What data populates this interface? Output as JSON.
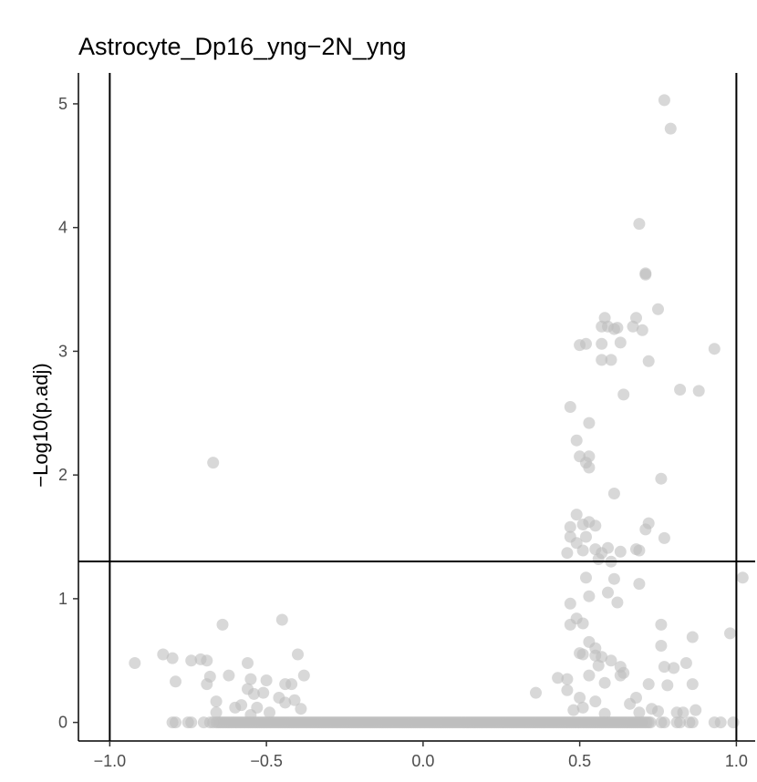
{
  "chart_data": {
    "type": "scatter",
    "title": "Astrocyte_Dp16_yng−2N_yng",
    "xlabel": "",
    "ylabel": "−Log10(p.adj)",
    "xlim": [
      -1.1,
      1.06
    ],
    "ylim": [
      -0.15,
      5.25
    ],
    "x_ticks": [
      -1.0,
      -0.5,
      0.0,
      0.5,
      1.0
    ],
    "x_tick_labels": [
      "−1.0",
      "−0.5",
      "0.0",
      "0.5",
      "1.0"
    ],
    "y_ticks": [
      0,
      1,
      2,
      3,
      4,
      5
    ],
    "y_tick_labels": [
      "0",
      "1",
      "2",
      "3",
      "4",
      "5"
    ],
    "grid": false,
    "point_color": "#bebebe",
    "reference_lines": {
      "vertical": [
        -1.0,
        1.0
      ],
      "horizontal": [
        1.301
      ]
    },
    "points": [
      [
        0.77,
        5.03
      ],
      [
        0.79,
        4.8
      ],
      [
        0.69,
        4.03
      ],
      [
        0.71,
        3.63
      ],
      [
        0.71,
        3.62
      ],
      [
        0.75,
        3.34
      ],
      [
        0.68,
        3.27
      ],
      [
        0.58,
        3.27
      ],
      [
        0.62,
        3.19
      ],
      [
        0.57,
        3.2
      ],
      [
        0.59,
        3.2
      ],
      [
        0.61,
        3.18
      ],
      [
        0.67,
        3.2
      ],
      [
        0.7,
        3.17
      ],
      [
        0.5,
        3.05
      ],
      [
        0.52,
        3.06
      ],
      [
        0.57,
        3.06
      ],
      [
        0.63,
        3.07
      ],
      [
        0.57,
        2.93
      ],
      [
        0.6,
        2.93
      ],
      [
        0.72,
        2.92
      ],
      [
        0.93,
        3.02
      ],
      [
        0.64,
        2.65
      ],
      [
        0.82,
        2.69
      ],
      [
        0.88,
        2.68
      ],
      [
        0.47,
        2.55
      ],
      [
        0.53,
        2.42
      ],
      [
        0.49,
        2.28
      ],
      [
        0.5,
        2.15
      ],
      [
        0.53,
        2.15
      ],
      [
        0.52,
        2.1
      ],
      [
        0.53,
        2.06
      ],
      [
        0.76,
        1.97
      ],
      [
        0.61,
        1.85
      ],
      [
        -0.67,
        2.1
      ],
      [
        0.49,
        1.68
      ],
      [
        0.51,
        1.6
      ],
      [
        0.53,
        1.62
      ],
      [
        0.47,
        1.58
      ],
      [
        0.55,
        1.59
      ],
      [
        0.72,
        1.61
      ],
      [
        0.71,
        1.56
      ],
      [
        0.47,
        1.5
      ],
      [
        0.52,
        1.5
      ],
      [
        0.77,
        1.49
      ],
      [
        0.49,
        1.45
      ],
      [
        0.46,
        1.37
      ],
      [
        0.51,
        1.39
      ],
      [
        0.55,
        1.4
      ],
      [
        0.57,
        1.37
      ],
      [
        0.59,
        1.41
      ],
      [
        0.63,
        1.38
      ],
      [
        0.68,
        1.4
      ],
      [
        0.69,
        1.39
      ],
      [
        0.56,
        1.32
      ],
      [
        0.6,
        1.3
      ],
      [
        0.52,
        1.17
      ],
      [
        0.61,
        1.16
      ],
      [
        0.69,
        1.12
      ],
      [
        1.02,
        1.17
      ],
      [
        0.59,
        1.05
      ],
      [
        0.53,
        1.02
      ],
      [
        0.62,
        0.97
      ],
      [
        0.47,
        0.96
      ],
      [
        0.49,
        0.84
      ],
      [
        0.51,
        0.8
      ],
      [
        0.47,
        0.79
      ],
      [
        0.76,
        0.79
      ],
      [
        0.86,
        0.69
      ],
      [
        0.98,
        0.72
      ],
      [
        -0.64,
        0.79
      ],
      [
        -0.45,
        0.83
      ],
      [
        0.53,
        0.65
      ],
      [
        0.55,
        0.6
      ],
      [
        0.76,
        0.62
      ],
      [
        0.5,
        0.56
      ],
      [
        0.51,
        0.55
      ],
      [
        0.55,
        0.54
      ],
      [
        0.57,
        0.53
      ],
      [
        0.6,
        0.5
      ],
      [
        -0.92,
        0.48
      ],
      [
        -0.83,
        0.55
      ],
      [
        -0.8,
        0.52
      ],
      [
        -0.74,
        0.5
      ],
      [
        -0.71,
        0.51
      ],
      [
        -0.69,
        0.5
      ],
      [
        -0.56,
        0.48
      ],
      [
        -0.4,
        0.55
      ],
      [
        0.56,
        0.46
      ],
      [
        0.63,
        0.45
      ],
      [
        0.77,
        0.45
      ],
      [
        0.8,
        0.44
      ],
      [
        0.84,
        0.48
      ],
      [
        0.36,
        0.24
      ],
      [
        0.43,
        0.36
      ],
      [
        0.46,
        0.35
      ],
      [
        0.53,
        0.38
      ],
      [
        0.63,
        0.38
      ],
      [
        0.64,
        0.4
      ],
      [
        -0.38,
        0.38
      ],
      [
        -0.79,
        0.33
      ],
      [
        -0.68,
        0.37
      ],
      [
        -0.69,
        0.31
      ],
      [
        -0.62,
        0.38
      ],
      [
        -0.55,
        0.35
      ],
      [
        -0.5,
        0.34
      ],
      [
        -0.44,
        0.31
      ],
      [
        -0.42,
        0.31
      ],
      [
        0.58,
        0.32
      ],
      [
        0.72,
        0.31
      ],
      [
        0.78,
        0.3
      ],
      [
        0.86,
        0.31
      ],
      [
        0.46,
        0.26
      ],
      [
        -0.56,
        0.27
      ],
      [
        -0.54,
        0.23
      ],
      [
        -0.51,
        0.24
      ],
      [
        -0.46,
        0.2
      ],
      [
        -0.41,
        0.18
      ],
      [
        -0.66,
        0.17
      ],
      [
        -0.44,
        0.16
      ],
      [
        0.5,
        0.2
      ],
      [
        0.55,
        0.17
      ],
      [
        0.66,
        0.15
      ],
      [
        0.68,
        0.2
      ],
      [
        0.73,
        0.11
      ],
      [
        -0.6,
        0.12
      ],
      [
        -0.58,
        0.14
      ],
      [
        -0.53,
        0.12
      ],
      [
        -0.49,
        0.08
      ],
      [
        -0.39,
        0.11
      ],
      [
        -0.66,
        0.08
      ],
      [
        -0.55,
        0.06
      ],
      [
        0.48,
        0.1
      ],
      [
        0.51,
        0.12
      ],
      [
        0.58,
        0.07
      ],
      [
        0.69,
        0.08
      ],
      [
        0.75,
        0.09
      ],
      [
        0.81,
        0.08
      ],
      [
        0.83,
        0.08
      ],
      [
        0.87,
        0.1
      ],
      [
        -0.8,
        0.0
      ],
      [
        -0.79,
        0.0
      ],
      [
        -0.75,
        0.0
      ],
      [
        -0.74,
        0.0
      ],
      [
        -0.7,
        0.0
      ],
      [
        -0.68,
        0.0
      ],
      [
        -0.67,
        0.0
      ],
      [
        0.76,
        0.0
      ],
      [
        0.77,
        0.0
      ],
      [
        0.81,
        0.0
      ],
      [
        0.82,
        0.0
      ],
      [
        0.85,
        0.0
      ],
      [
        0.86,
        0.0
      ],
      [
        0.93,
        0.0
      ],
      [
        0.95,
        0.0
      ],
      [
        0.99,
        0.0
      ]
    ],
    "zero_band": {
      "x_from": -0.66,
      "x_to": 0.73,
      "y": 0.0
    }
  }
}
